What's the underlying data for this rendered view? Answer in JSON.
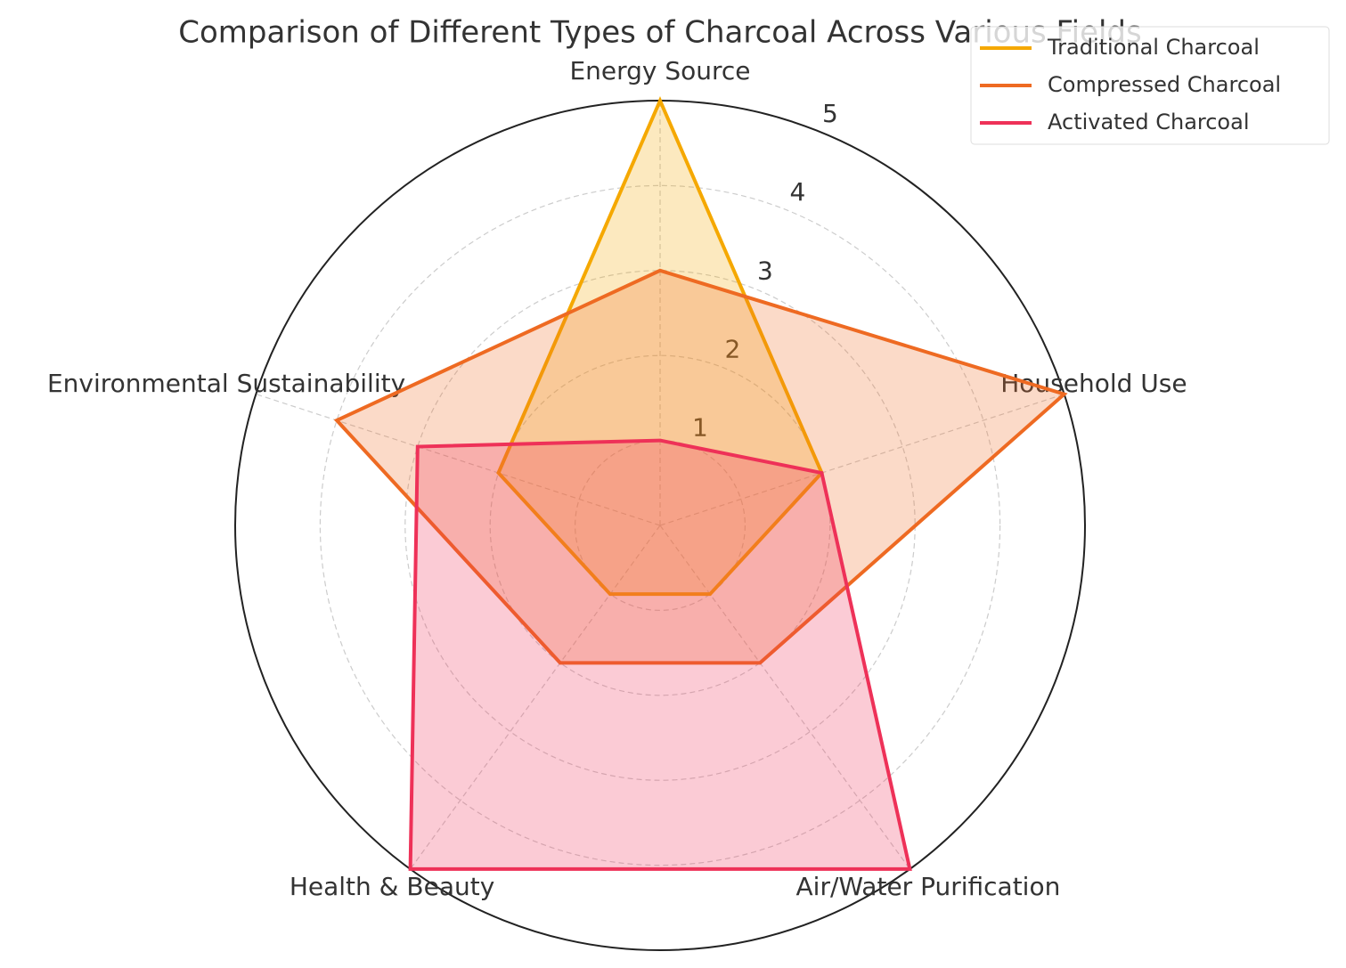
{
  "chart_data": {
    "type": "radar",
    "title": "Comparison of Different Types of Charcoal Across Various Fields",
    "categories": [
      "Energy Source",
      "Household Use",
      "Air/Water Purification",
      "Health & Beauty",
      "Environmental Sustainability"
    ],
    "rlim": [
      0,
      5
    ],
    "rticks": [
      1,
      2,
      3,
      4,
      5
    ],
    "grid": true,
    "legend": "upper right",
    "series": [
      {
        "name": "Traditional Charcoal",
        "color": "#f5a800",
        "values": [
          5,
          2,
          1,
          1,
          2
        ]
      },
      {
        "name": "Compressed Charcoal",
        "color": "#ee6a22",
        "values": [
          3,
          5,
          2,
          2,
          4
        ]
      },
      {
        "name": "Activated Charcoal",
        "color": "#ee3158",
        "values": [
          1,
          2,
          5,
          5,
          3
        ]
      }
    ]
  }
}
